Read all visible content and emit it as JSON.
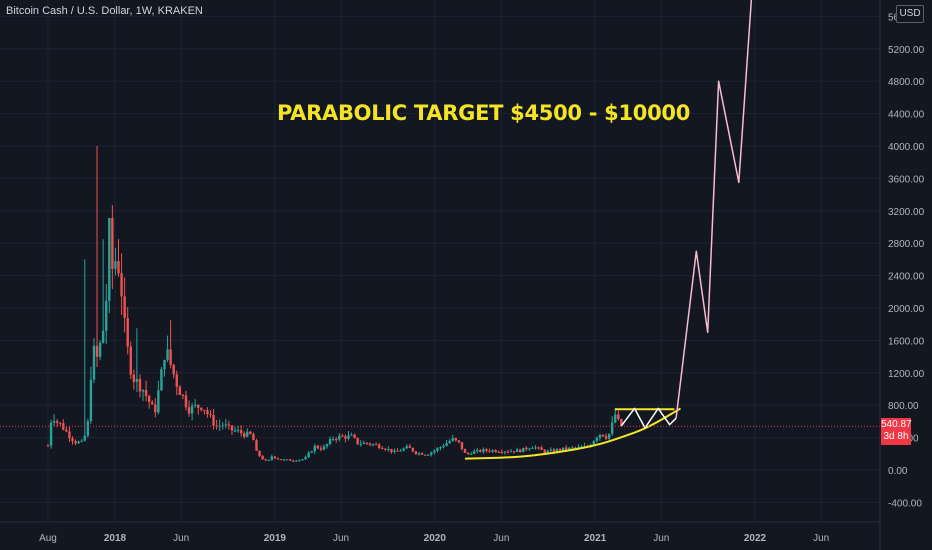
{
  "header": {
    "symbol": "Bitcoin Cash / U.S. Dollar, 1W, KRAKEN",
    "currency": "USD"
  },
  "price_label": {
    "value": "540.87",
    "countdown": "3d 8h"
  },
  "annotation": "PARABOLIC TARGET $4500 - $10000",
  "colors": {
    "background": "#131722",
    "up": "#26a69a",
    "down": "#ef5350",
    "annotation": "#f5e426",
    "projection": "#f8bbd0",
    "zigzag": "#ffffff",
    "price_line": "#f23645"
  },
  "chart_data": {
    "type": "candlestick",
    "title": "Bitcoin Cash / U.S. Dollar, 1W, KRAKEN",
    "ylim": [
      -600,
      5800
    ],
    "y_ticks": [
      "5600.00",
      "5200.00",
      "4800.00",
      "4400.00",
      "4000.00",
      "3600.00",
      "3200.00",
      "2800.00",
      "2400.00",
      "2000.00",
      "1600.00",
      "1200.00",
      "800.00",
      "400.00",
      "0.00",
      "-400.00"
    ],
    "x_ticks": [
      "Aug",
      "2018",
      "Jun",
      "2019",
      "Jun",
      "2020",
      "Jun",
      "2021",
      "Jun",
      "2022",
      "Jun"
    ],
    "current_price": 540.87,
    "price_path": [
      [
        "2017-08-01",
        300
      ],
      [
        "2017-08-10",
        700
      ],
      [
        "2017-08-20",
        600
      ],
      [
        "2017-09-01",
        550
      ],
      [
        "2017-09-15",
        450
      ],
      [
        "2017-10-01",
        350
      ],
      [
        "2017-10-20",
        330
      ],
      [
        "2017-11-01",
        600
      ],
      [
        "2017-11-10",
        1500
      ],
      [
        "2017-11-20",
        1350
      ],
      [
        "2017-12-01",
        1600
      ],
      [
        "2017-12-10",
        1900
      ],
      [
        "2017-12-20",
        3000
      ],
      [
        "2017-12-27",
        2400
      ],
      [
        "2018-01-05",
        2700
      ],
      [
        "2018-01-15",
        2300
      ],
      [
        "2018-01-25",
        1600
      ],
      [
        "2018-02-05",
        1300
      ],
      [
        "2018-02-15",
        1100
      ],
      [
        "2018-03-01",
        1050
      ],
      [
        "2018-03-15",
        900
      ],
      [
        "2018-04-01",
        700
      ],
      [
        "2018-04-15",
        1100
      ],
      [
        "2018-04-25",
        1500
      ],
      [
        "2018-05-05",
        1350
      ],
      [
        "2018-05-20",
        1100
      ],
      [
        "2018-06-05",
        900
      ],
      [
        "2018-06-20",
        750
      ],
      [
        "2018-07-05",
        780
      ],
      [
        "2018-07-20",
        800
      ],
      [
        "2018-08-05",
        650
      ],
      [
        "2018-08-20",
        540
      ],
      [
        "2018-09-05",
        560
      ],
      [
        "2018-09-20",
        500
      ],
      [
        "2018-10-05",
        480
      ],
      [
        "2018-10-25",
        440
      ],
      [
        "2018-11-10",
        430
      ],
      [
        "2018-11-20",
        220
      ],
      [
        "2018-12-01",
        150
      ],
      [
        "2018-12-15",
        95
      ],
      [
        "2018-12-25",
        170
      ],
      [
        "2019-01-15",
        125
      ],
      [
        "2019-02-10",
        120
      ],
      [
        "2019-03-10",
        135
      ],
      [
        "2019-04-01",
        290
      ],
      [
        "2019-04-20",
        260
      ],
      [
        "2019-05-15",
        400
      ],
      [
        "2019-06-05",
        410
      ],
      [
        "2019-06-25",
        410
      ],
      [
        "2019-07-10",
        330
      ],
      [
        "2019-08-01",
        330
      ],
      [
        "2019-09-01",
        290
      ],
      [
        "2019-10-01",
        220
      ],
      [
        "2019-11-01",
        280
      ],
      [
        "2019-11-20",
        210
      ],
      [
        "2019-12-15",
        195
      ],
      [
        "2020-01-10",
        270
      ],
      [
        "2020-02-10",
        380
      ],
      [
        "2020-02-25",
        330
      ],
      [
        "2020-03-12",
        185
      ],
      [
        "2020-03-25",
        220
      ],
      [
        "2020-04-20",
        240
      ],
      [
        "2020-05-15",
        240
      ],
      [
        "2020-06-15",
        235
      ],
      [
        "2020-07-15",
        240
      ],
      [
        "2020-08-10",
        295
      ],
      [
        "2020-09-10",
        220
      ],
      [
        "2020-10-15",
        255
      ],
      [
        "2020-11-15",
        270
      ],
      [
        "2020-12-15",
        285
      ],
      [
        "2021-01-05",
        420
      ],
      [
        "2021-01-15",
        460
      ],
      [
        "2021-01-25",
        410
      ],
      [
        "2021-02-05",
        460
      ],
      [
        "2021-02-15",
        700
      ],
      [
        "2021-02-25",
        560
      ],
      [
        "2021-03-05",
        540
      ]
    ],
    "support_curve": [
      [
        "2020-03-10",
        140
      ],
      [
        "2020-07-01",
        155
      ],
      [
        "2020-10-01",
        210
      ],
      [
        "2021-01-01",
        300
      ],
      [
        "2021-03-01",
        400
      ],
      [
        "2021-05-01",
        520
      ],
      [
        "2021-07-15",
        760
      ]
    ],
    "resistance_line": [
      [
        "2021-02-15",
        750
      ],
      [
        "2021-07-01",
        750
      ]
    ],
    "zigzag": [
      [
        "2021-03-01",
        540
      ],
      [
        "2021-04-01",
        760
      ],
      [
        "2021-04-25",
        520
      ],
      [
        "2021-05-25",
        760
      ],
      [
        "2021-06-20",
        560
      ],
      [
        "2021-07-05",
        640
      ]
    ],
    "projection": [
      [
        "2021-07-05",
        640
      ],
      [
        "2021-08-20",
        2700
      ],
      [
        "2021-09-15",
        1700
      ],
      [
        "2021-10-10",
        4800
      ],
      [
        "2021-11-25",
        3550
      ],
      [
        "2021-12-25",
        5900
      ]
    ]
  }
}
